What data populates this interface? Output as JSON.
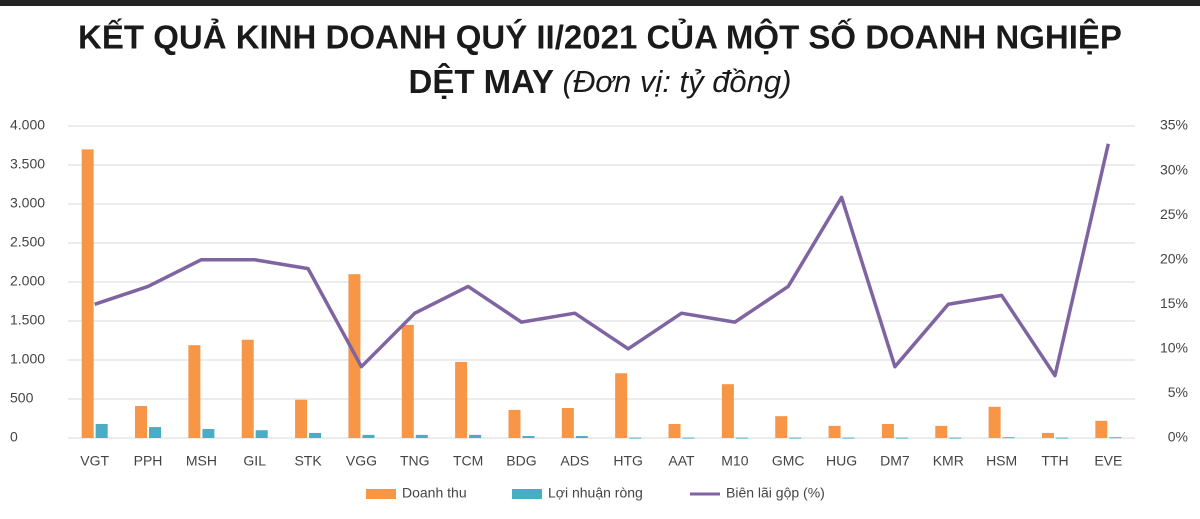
{
  "chart_data": {
    "type": "bar",
    "title": [
      "KẾT QUẢ KINH DOANH QUÝ II/2021 CỦA MỘT SỐ DOANH NGHIỆP",
      "DỆT MAY"
    ],
    "subtitle": "(Đơn vị: tỷ đồng)",
    "categories": [
      "VGT",
      "PPH",
      "MSH",
      "GIL",
      "STK",
      "VGG",
      "TNG",
      "TCM",
      "BDG",
      "ADS",
      "HTG",
      "AAT",
      "M10",
      "GMC",
      "HUG",
      "DM7",
      "KMR",
      "HSM",
      "TTH",
      "EVE"
    ],
    "series": [
      {
        "name": "Doanh thu",
        "color": "#f79646",
        "type": "bar",
        "values": [
          3700,
          410,
          1190,
          1260,
          490,
          2100,
          1450,
          975,
          360,
          385,
          830,
          180,
          690,
          280,
          155,
          180,
          155,
          400,
          65,
          220
        ]
      },
      {
        "name": "Lợi nhuận ròng",
        "color": "#4bacc6",
        "type": "bar",
        "values": [
          180,
          140,
          115,
          100,
          65,
          40,
          40,
          40,
          25,
          25,
          5,
          5,
          5,
          5,
          5,
          5,
          5,
          10,
          5,
          10
        ]
      },
      {
        "name": "Biên lãi gộp (%)",
        "color": "#8064a2",
        "type": "line",
        "axis": "y2",
        "values": [
          15,
          17,
          20,
          20,
          19,
          8,
          14,
          17,
          13,
          14,
          10,
          14,
          13,
          17,
          27,
          8,
          15,
          16,
          7,
          33
        ]
      }
    ],
    "ylim": [
      0,
      4000
    ],
    "yticks": [
      0,
      500,
      {
        "value": 1000,
        "label": "1.000"
      },
      {
        "value": 1500,
        "label": "1.500"
      },
      {
        "value": 2000,
        "label": "2.000"
      },
      {
        "value": 2500,
        "label": "2.500"
      },
      {
        "value": 3000,
        "label": "3.000"
      },
      {
        "value": 3500,
        "label": "3.500"
      },
      {
        "value": 4000,
        "label": "4.000"
      }
    ],
    "y2lim": [
      0,
      35
    ],
    "y2ticks": [
      {
        "value": 0,
        "label": "0%"
      },
      {
        "value": 5,
        "label": "5%"
      },
      {
        "value": 10,
        "label": "10%"
      },
      {
        "value": 15,
        "label": "15%"
      },
      {
        "value": 20,
        "label": "20%"
      },
      {
        "value": 25,
        "label": "25%"
      },
      {
        "value": 30,
        "label": "30%"
      },
      {
        "value": 35,
        "label": "35%"
      }
    ],
    "grid": true,
    "legend": "bottom"
  }
}
